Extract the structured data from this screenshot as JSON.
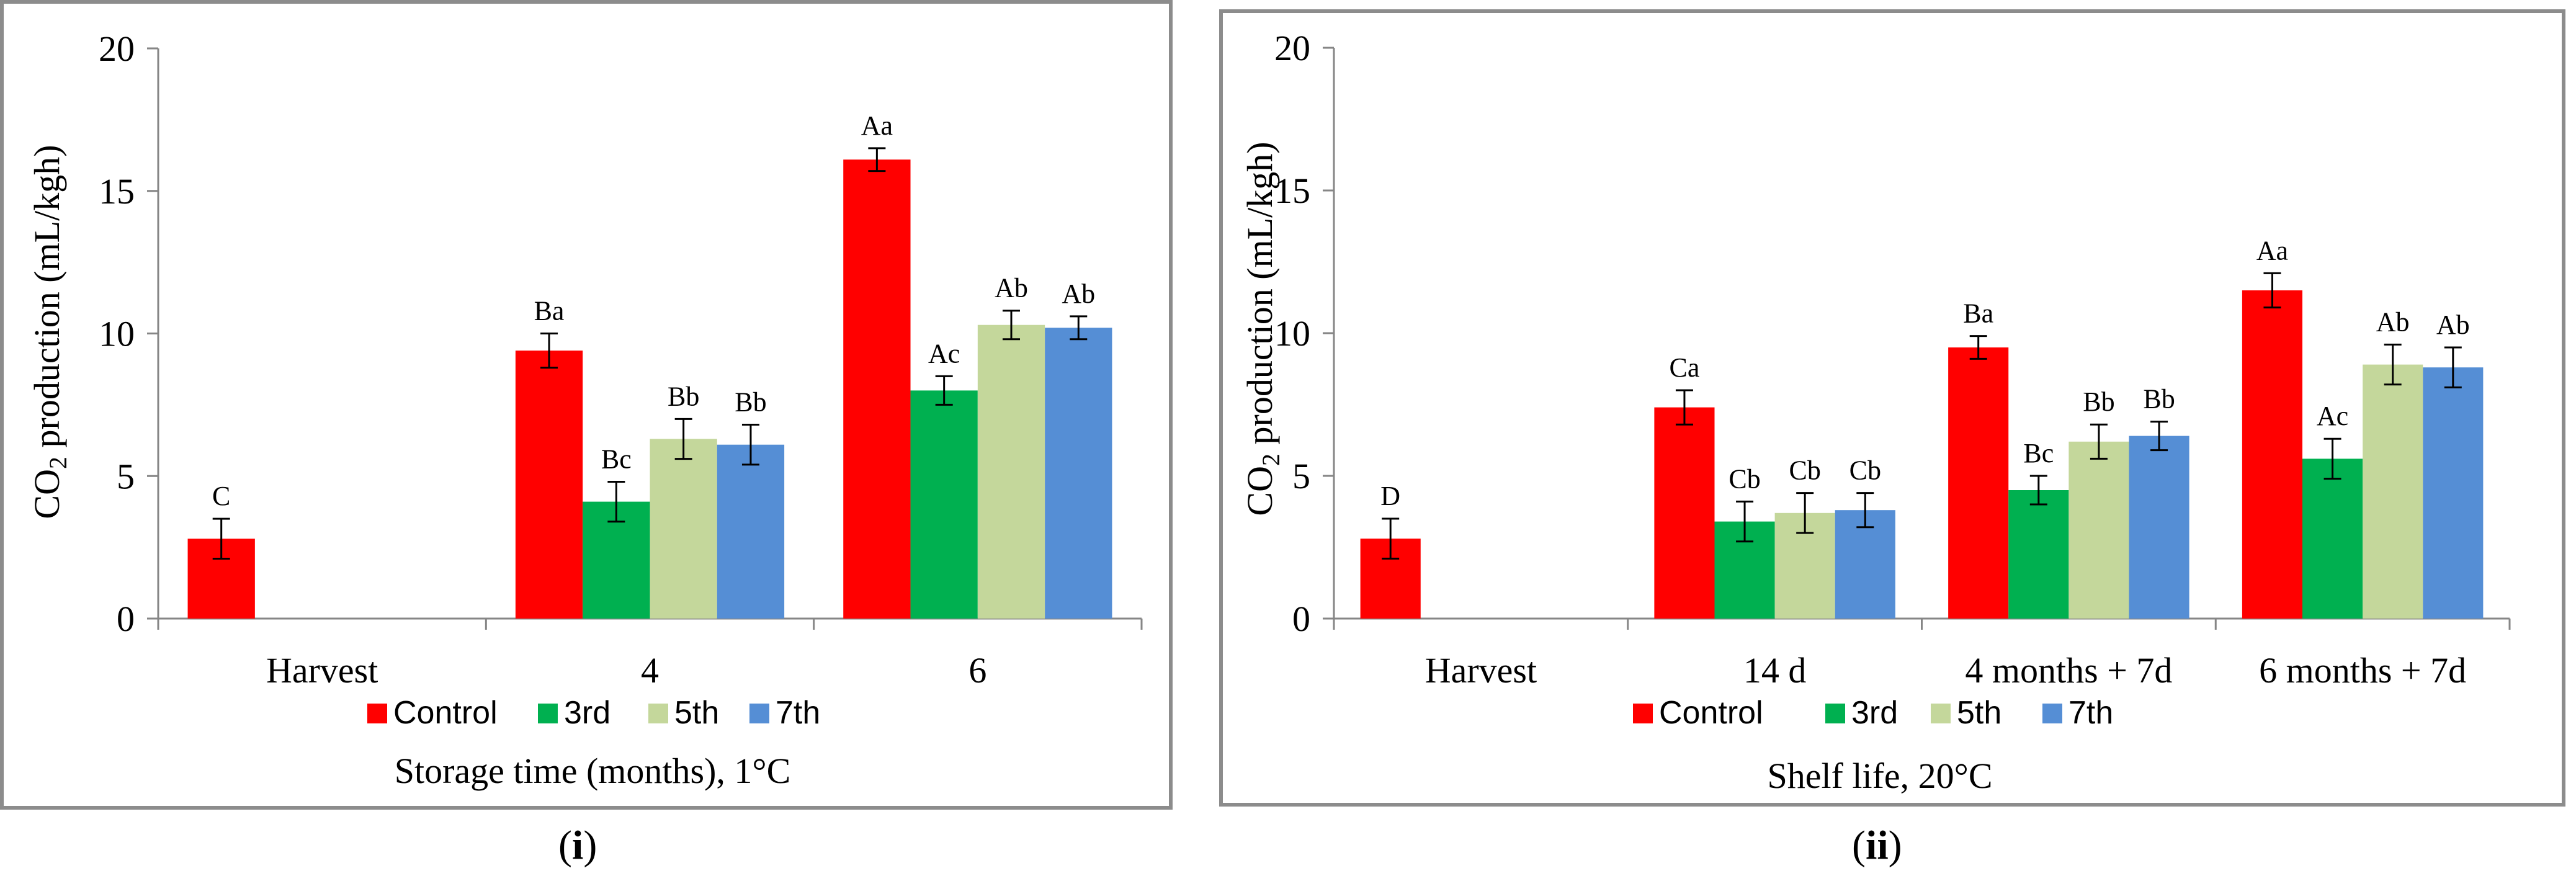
{
  "colors": {
    "control": "#ff0000",
    "third": "#00b050",
    "fifth": "#c4d79b",
    "seventh": "#558ed5",
    "axis": "#868686",
    "frame": "#8c8c8c"
  },
  "captions": {
    "left_open": "(",
    "left_label": "i",
    "left_close": ")",
    "right_open": "(",
    "right_label": "ii",
    "right_close": ")"
  },
  "chart_data": [
    {
      "type": "bar",
      "ylabel_pre": "CO",
      "ylabel_sub": "2",
      "ylabel_post": " production (mL/kgh)",
      "xlabel": "Storage time (months), 1°C",
      "ylim": [
        0,
        20
      ],
      "yticks": [
        0,
        5,
        10,
        15,
        20
      ],
      "ytick_labels": [
        "0",
        "5",
        "10",
        "15",
        "20"
      ],
      "categories": [
        "Harvest",
        "4",
        "6"
      ],
      "legend": [
        "Control",
        "3rd",
        "5th",
        "7th"
      ],
      "series": [
        {
          "name": "Control",
          "values": [
            2.8,
            9.4,
            16.1
          ],
          "errors": [
            0.7,
            0.6,
            0.4
          ],
          "labels": [
            "C",
            "Ba",
            "Aa"
          ]
        },
        {
          "name": "3rd",
          "values": [
            null,
            4.1,
            8.0
          ],
          "errors": [
            null,
            0.7,
            0.5
          ],
          "labels": [
            null,
            "Bc",
            "Ac"
          ]
        },
        {
          "name": "5th",
          "values": [
            null,
            6.3,
            10.3
          ],
          "errors": [
            null,
            0.7,
            0.5
          ],
          "labels": [
            null,
            "Bb",
            "Ab"
          ]
        },
        {
          "name": "7th",
          "values": [
            null,
            6.1,
            10.2
          ],
          "errors": [
            null,
            0.7,
            0.4
          ],
          "labels": [
            null,
            "Bb",
            "Ab"
          ]
        }
      ]
    },
    {
      "type": "bar",
      "ylabel_pre": "CO",
      "ylabel_sub": "2",
      "ylabel_post": " production (mL/kgh)",
      "xlabel": "Shelf life, 20°C",
      "ylim": [
        0,
        20
      ],
      "yticks": [
        0,
        5,
        10,
        15,
        20
      ],
      "ytick_labels": [
        "0",
        "5",
        "10",
        "15",
        "20"
      ],
      "categories": [
        "Harvest",
        "14 d",
        "4 months + 7d",
        "6 months + 7d"
      ],
      "legend": [
        "Control",
        "3rd",
        "5th",
        "7th"
      ],
      "series": [
        {
          "name": "Control",
          "values": [
            2.8,
            7.4,
            9.5,
            11.5
          ],
          "errors": [
            0.7,
            0.6,
            0.4,
            0.6
          ],
          "labels": [
            "D",
            "Ca",
            "Ba",
            "Aa"
          ]
        },
        {
          "name": "3rd",
          "values": [
            null,
            3.4,
            4.5,
            5.6
          ],
          "errors": [
            null,
            0.7,
            0.5,
            0.7
          ],
          "labels": [
            null,
            "Cb",
            "Bc",
            "Ac"
          ]
        },
        {
          "name": "5th",
          "values": [
            null,
            3.7,
            6.2,
            8.9
          ],
          "errors": [
            null,
            0.7,
            0.6,
            0.7
          ],
          "labels": [
            null,
            "Cb",
            "Bb",
            "Ab"
          ]
        },
        {
          "name": "7th",
          "values": [
            null,
            3.8,
            6.4,
            8.8
          ],
          "errors": [
            null,
            0.6,
            0.5,
            0.7
          ],
          "labels": [
            null,
            "Cb",
            "Bb",
            "Ab"
          ]
        }
      ]
    }
  ]
}
